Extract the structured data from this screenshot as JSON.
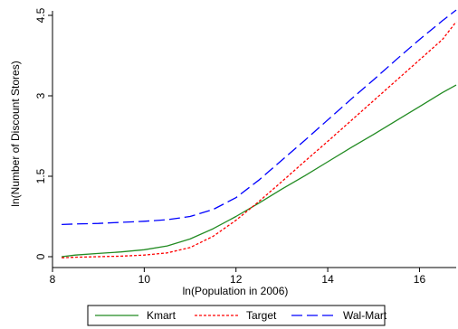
{
  "chart_data": {
    "type": "line",
    "xlabel": "ln(Population in 2006)",
    "ylabel": "ln(Number of Discount Stores)",
    "xlim": [
      8,
      16.8
    ],
    "ylim": [
      0,
      4.5
    ],
    "x_ticks": [
      8,
      10,
      12,
      14,
      16
    ],
    "y_ticks": [
      0,
      1.5,
      3,
      4.5
    ],
    "x_tick_labels": [
      "8",
      "10",
      "12",
      "14",
      "16"
    ],
    "y_tick_labels": [
      "0",
      "1.5",
      "3",
      "4.5"
    ],
    "grid": false,
    "legend_position": "bottom",
    "series": [
      {
        "name": "Kmart",
        "color": "#228b22",
        "dash": "solid",
        "x": [
          8.2,
          8.5,
          9,
          9.5,
          10,
          10.5,
          11,
          11.5,
          12,
          12.5,
          13,
          13.5,
          14,
          14.5,
          15,
          15.5,
          16,
          16.5,
          16.8
        ],
        "y": [
          0.0,
          0.03,
          0.06,
          0.09,
          0.13,
          0.2,
          0.33,
          0.52,
          0.75,
          1.0,
          1.26,
          1.51,
          1.77,
          2.03,
          2.28,
          2.54,
          2.8,
          3.06,
          3.2
        ]
      },
      {
        "name": "Target",
        "color": "#ff0000",
        "dash": "short",
        "x": [
          8.2,
          8.5,
          9,
          9.5,
          10,
          10.5,
          11,
          11.5,
          12,
          12.5,
          13,
          13.5,
          14,
          14.5,
          15,
          15.5,
          16,
          16.5,
          16.8
        ],
        "y": [
          -0.02,
          -0.01,
          0.0,
          0.01,
          0.03,
          0.07,
          0.17,
          0.38,
          0.68,
          1.03,
          1.4,
          1.78,
          2.15,
          2.53,
          2.91,
          3.29,
          3.67,
          4.05,
          4.38
        ]
      },
      {
        "name": "Wal-Mart",
        "color": "#0000ff",
        "dash": "long",
        "x": [
          8.2,
          8.5,
          9,
          9.5,
          10,
          10.5,
          11,
          11.5,
          12,
          12.5,
          13,
          13.5,
          14,
          14.5,
          15,
          15.5,
          16,
          16.5,
          16.8
        ],
        "y": [
          0.6,
          0.61,
          0.62,
          0.64,
          0.66,
          0.69,
          0.75,
          0.88,
          1.1,
          1.43,
          1.8,
          2.17,
          2.55,
          2.93,
          3.3,
          3.68,
          4.05,
          4.4,
          4.6
        ]
      }
    ]
  }
}
